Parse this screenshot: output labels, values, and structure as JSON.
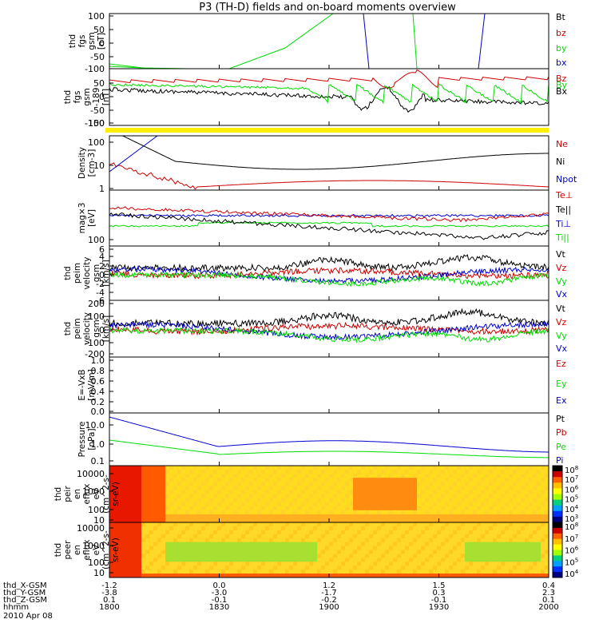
{
  "title": "P3 (TH-D) fields and on-board moments overview",
  "colors": {
    "black": "#000000",
    "red": "#cc0000",
    "green": "#00dd00",
    "blue": "#0000cc",
    "yellow": "#ffee00"
  },
  "chart_data": [
    {
      "id": "fgs",
      "type": "line",
      "ylabel": [
        "thd",
        "fgs",
        "gsm",
        "[nT]"
      ],
      "ylim": [
        -100,
        100
      ],
      "yticks": [
        "100",
        "50",
        "0",
        "-50",
        "-100"
      ],
      "legend": [
        {
          "name": "Bt",
          "color": "black"
        },
        {
          "name": "bz",
          "color": "red"
        },
        {
          "name": "by",
          "color": "green"
        },
        {
          "name": "bx",
          "color": "blue"
        }
      ]
    },
    {
      "id": "fgs_hires",
      "type": "line",
      "ylabel": [
        "thd",
        "fgs",
        "gsm",
        "-189",
        "[nT]"
      ],
      "ylim": [
        -180,
        40
      ],
      "yticks": [
        "50",
        "0",
        "-50",
        "-100",
        "-150"
      ],
      "legend": [
        {
          "name": "Bz",
          "color": "red"
        },
        {
          "name": "By",
          "color": "green"
        },
        {
          "name": "Bx",
          "color": "black"
        }
      ]
    },
    {
      "id": "density",
      "type": "line",
      "ylabel": [
        "Density",
        "[cm-3]"
      ],
      "scale": "log",
      "ylim": [
        0.8,
        200
      ],
      "yticks": [
        "100",
        "10",
        "1"
      ],
      "legend": [
        {
          "name": "Ne",
          "color": "red"
        },
        {
          "name": "Ni",
          "color": "black"
        },
        {
          "name": "Npot",
          "color": "blue"
        }
      ]
    },
    {
      "id": "temperature",
      "type": "line",
      "ylabel": [
        "mag×3",
        "[eV]"
      ],
      "scale": "log",
      "yticks": [
        "100"
      ],
      "legend": [
        {
          "name": "Te⊥",
          "color": "red"
        },
        {
          "name": "Te||",
          "color": "black"
        },
        {
          "name": "Ti⊥",
          "color": "blue"
        },
        {
          "name": "Ti||",
          "color": "green"
        }
      ]
    },
    {
      "id": "peim_velocity_small",
      "type": "line",
      "ylabel": [
        "thd",
        "peim",
        "velocity",
        "gsm",
        "[km/s]"
      ],
      "ylim": [
        -6,
        6
      ],
      "yticks": [
        "6",
        "4",
        "2",
        "0",
        "-2",
        "-4",
        "-6"
      ],
      "legend": [
        {
          "name": "Vt",
          "color": "black"
        },
        {
          "name": "Vz",
          "color": "red"
        },
        {
          "name": "Vy",
          "color": "green"
        },
        {
          "name": "Vx",
          "color": "blue"
        }
      ]
    },
    {
      "id": "peim_velocity",
      "type": "line",
      "ylabel": [
        "thd",
        "peim",
        "velocity",
        "gsm",
        "[km/s]"
      ],
      "ylim": [
        -200,
        200
      ],
      "yticks": [
        "200",
        "100",
        "0",
        "-100",
        "-200"
      ],
      "legend": [
        {
          "name": "Vt",
          "color": "black"
        },
        {
          "name": "Vz",
          "color": "red"
        },
        {
          "name": "Vy",
          "color": "green"
        },
        {
          "name": "Vx",
          "color": "blue"
        }
      ]
    },
    {
      "id": "efield",
      "type": "line",
      "ylabel": [
        "E=-VxB",
        "[mV/m]"
      ],
      "ylim": [
        0,
        1
      ],
      "yticks": [
        "1.0",
        "0.8",
        "0.6",
        "0.4",
        "0.2",
        "0.0"
      ],
      "legend": [
        {
          "name": "Ez",
          "color": "red"
        },
        {
          "name": "Ey",
          "color": "green"
        },
        {
          "name": "Ex",
          "color": "blue"
        }
      ]
    },
    {
      "id": "pressure",
      "type": "line",
      "ylabel": [
        "Pressure",
        "[nPa]"
      ],
      "scale": "log",
      "yticks": [
        "10.0",
        "1.0",
        "0.1"
      ],
      "legend": [
        {
          "name": "Pt",
          "color": "black"
        },
        {
          "name": "Pb",
          "color": "red"
        },
        {
          "name": "Pe",
          "color": "green"
        },
        {
          "name": "Pi",
          "color": "blue"
        }
      ]
    },
    {
      "id": "peir_eflux",
      "type": "heatmap",
      "ylabel": [
        "thd",
        "peir",
        "en",
        "eflux",
        "eV",
        "(cm^2-s-",
        "sr-eV)"
      ],
      "scale": "log",
      "yticks": [
        "10000",
        "1000",
        "100",
        "10"
      ],
      "colorbar_ticks": [
        "10^8",
        "10^7",
        "10^6",
        "10^5",
        "10^4",
        "10^3"
      ]
    },
    {
      "id": "peer_eflux",
      "type": "heatmap",
      "ylabel": [
        "thd",
        "peer",
        "en",
        "eflux",
        "eV",
        "(cm^2-s-",
        "sr-eV)"
      ],
      "scale": "log",
      "yticks": [
        "10000",
        "1000",
        "100",
        "10"
      ],
      "colorbar_ticks": [
        "10^8",
        "10^7",
        "10^6",
        "10^5",
        "10^4"
      ]
    }
  ],
  "xaxis": {
    "row_labels": [
      "thd_X-GSM",
      "thd_Y-GSM",
      "thd_Z-GSM",
      "hhmm",
      "2010 Apr 08"
    ],
    "ticks": [
      {
        "x": 1800,
        "vals": [
          "-1.2",
          "-3.8",
          "0.1",
          "1800"
        ]
      },
      {
        "x": 1830,
        "vals": [
          "0.0",
          "-3.0",
          "-0.1",
          "1830"
        ]
      },
      {
        "x": 1900,
        "vals": [
          "1.2",
          "-1.7",
          "-0.2",
          "1900"
        ]
      },
      {
        "x": 1930,
        "vals": [
          "1.5",
          "0.3",
          "-0.1",
          "1930"
        ]
      },
      {
        "x": 2000,
        "vals": [
          "0.4",
          "2.3",
          "0.1",
          "2000"
        ]
      }
    ]
  }
}
